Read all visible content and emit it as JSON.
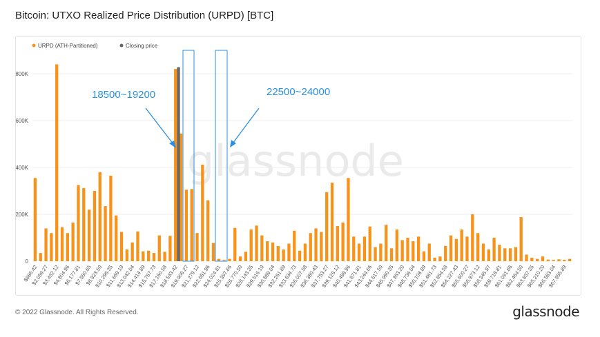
{
  "header": {
    "title": "Bitcoin: UTXO Realized Price Distribution (URPD) [BTC]"
  },
  "footer": {
    "copyright": "© 2022 Glassnode. All Rights Reserved.",
    "logo_text": "glassnode"
  },
  "watermark": "glassnode",
  "annotations": [
    {
      "label": "18500~19200"
    },
    {
      "label": "22500~24000"
    }
  ],
  "colors": {
    "bar": "#f7931a",
    "closing": "#666666",
    "annotation": "#2a8fe0"
  },
  "chart_data": {
    "type": "bar",
    "title": "",
    "legend": {
      "position": "top-left",
      "entries": [
        "URPD (ATH-Partitioned)",
        "Closing price"
      ]
    },
    "ylim": [
      0,
      900000
    ],
    "yticks": [
      0,
      200000,
      400000,
      600000,
      800000
    ],
    "ytick_labels": [
      "0",
      "200K",
      "400K",
      "600K",
      "800K"
    ],
    "grid": {
      "horizontal": true,
      "vertical": false
    },
    "xtick_labels": [
      "$686.42",
      "$2,059.27",
      "$3,432.12",
      "$4,804.96",
      "$6,177.81",
      "$7,550.65",
      "$8,923.50",
      "$10,296.35",
      "$11,669.19",
      "$13,042.04",
      "$14,414.89",
      "$15,787.73",
      "$17,160.58",
      "$18,533.42",
      "$19,906.27",
      "$21,279.12",
      "$22,651.96",
      "$24,024.81",
      "$25,397.66",
      "$26,770.50",
      "$28,143.35",
      "$29,516.19",
      "$30,889.04",
      "$32,261.89",
      "$33,634.73",
      "$35,007.58",
      "$36,380.43",
      "$37,753.27",
      "$39,126.12",
      "$40,498.96",
      "$41,871.81",
      "$43,244.66",
      "$44,617.50",
      "$45,990.35",
      "$47,363.20",
      "$48,736.04",
      "$50,108.89",
      "$51,481.73",
      "$52,854.58",
      "$54,227.43",
      "$55,600.27",
      "$56,973.12",
      "$58,345.97",
      "$59,718.81",
      "$61,091.66",
      "$62,464.50",
      "$63,837.35",
      "$65,210.20",
      "$66,583.04",
      "$67,955.89"
    ],
    "series": [
      {
        "name": "URPD (ATH-Partitioned)",
        "values": [
          355000,
          35000,
          140000,
          120000,
          840000,
          145000,
          120000,
          165000,
          325000,
          312000,
          220000,
          300000,
          380000,
          235000,
          365000,
          195000,
          125000,
          50000,
          80000,
          127000,
          42000,
          45000,
          35000,
          110000,
          40000,
          108000,
          820000,
          545000,
          305000,
          308000,
          120000,
          412000,
          260000,
          78000,
          10000,
          5000,
          10000,
          142000,
          20000,
          40000,
          135000,
          152000,
          110000,
          85000,
          80000,
          65000,
          50000,
          75000,
          130000,
          45000,
          75000,
          120000,
          140000,
          125000,
          295000,
          335000,
          150000,
          165000,
          355000,
          105000,
          75000,
          105000,
          148000,
          60000,
          75000,
          155000,
          55000,
          135000,
          90000,
          100000,
          85000,
          105000,
          42000,
          75000,
          15000,
          20000,
          65000,
          110000,
          95000,
          135000,
          105000,
          200000,
          120000,
          75000,
          50000,
          100000,
          70000,
          55000,
          55000,
          60000,
          188000,
          28000,
          15000,
          10000,
          20000,
          7000,
          5000,
          8000,
          6000,
          10000
        ]
      },
      {
        "name": "Closing price",
        "index": 27,
        "value": 828000
      }
    ]
  }
}
